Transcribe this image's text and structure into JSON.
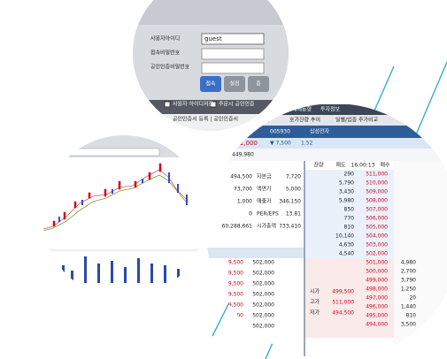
{
  "login": {
    "fields": [
      "사용자아이디",
      "접속비밀번호",
      "공인인증비밀번호"
    ],
    "user_id": "guest",
    "buttons": [
      "접속",
      "설정",
      "종"
    ],
    "checkboxes": [
      "사용자 아이디저장",
      "주문시 공인인증"
    ],
    "footer": "공인인증서 등록 | 공인인증서"
  },
  "quote": {
    "menu": [
      "매매동향",
      "투자정보"
    ],
    "tabs": [
      "시간별 체결",
      "호가잔량 추이",
      "일별/업종 주가비교"
    ],
    "code": "005930",
    "stock": "삼성전자",
    "price": "502,000",
    "change": "▼ 7,500",
    "rate": "1.52",
    "volume": "449,980",
    "info": [
      [
        "494,500",
        "자본금",
        "7,720"
      ],
      [
        "73,700",
        "액면가",
        "5,000"
      ],
      [
        "1,000",
        "매출가",
        "346,150"
      ],
      [
        "0",
        "PER/EPS",
        "13.81"
      ],
      [
        "60,288,661",
        "시가총액",
        "733,410"
      ]
    ],
    "book_header": [
      "잔량",
      "매도",
      "16:00:13",
      "매수"
    ],
    "asks": [
      [
        "290",
        "511,000"
      ],
      [
        "5,790",
        "510,000"
      ],
      [
        "3,430",
        "509,000"
      ],
      [
        "5,980",
        "508,000"
      ],
      [
        "850",
        "507,000"
      ],
      [
        "770",
        "506,000"
      ],
      [
        "810",
        "505,000"
      ],
      [
        "10,140",
        "504,000"
      ],
      [
        "4,630",
        "503,000"
      ],
      [
        "4,540",
        "502,000"
      ]
    ],
    "bids": [
      [
        "501,000",
        "4,980"
      ],
      [
        "500,000",
        "2,700"
      ],
      [
        "499,000",
        "3,790"
      ],
      [
        "498,000",
        "1,250"
      ],
      [
        "497,000",
        "20"
      ],
      [
        "496,000",
        "1,440"
      ],
      [
        "495,000",
        "810"
      ],
      [
        "494,000",
        "3,500"
      ]
    ],
    "stats": [
      [
        "시가",
        "499,500"
      ],
      [
        "고가",
        "511,000"
      ],
      [
        "저가",
        "494,500"
      ]
    ],
    "trades": [
      [
        "9,500",
        "502,000"
      ],
      [
        "9,500",
        "502,000"
      ],
      [
        "9,500",
        "502,000"
      ],
      [
        "9,500",
        "502,000"
      ],
      [
        "9,500",
        "502,000"
      ],
      [
        "9,500",
        "502,000"
      ],
      [
        "9,500",
        "502,000"
      ]
    ]
  }
}
